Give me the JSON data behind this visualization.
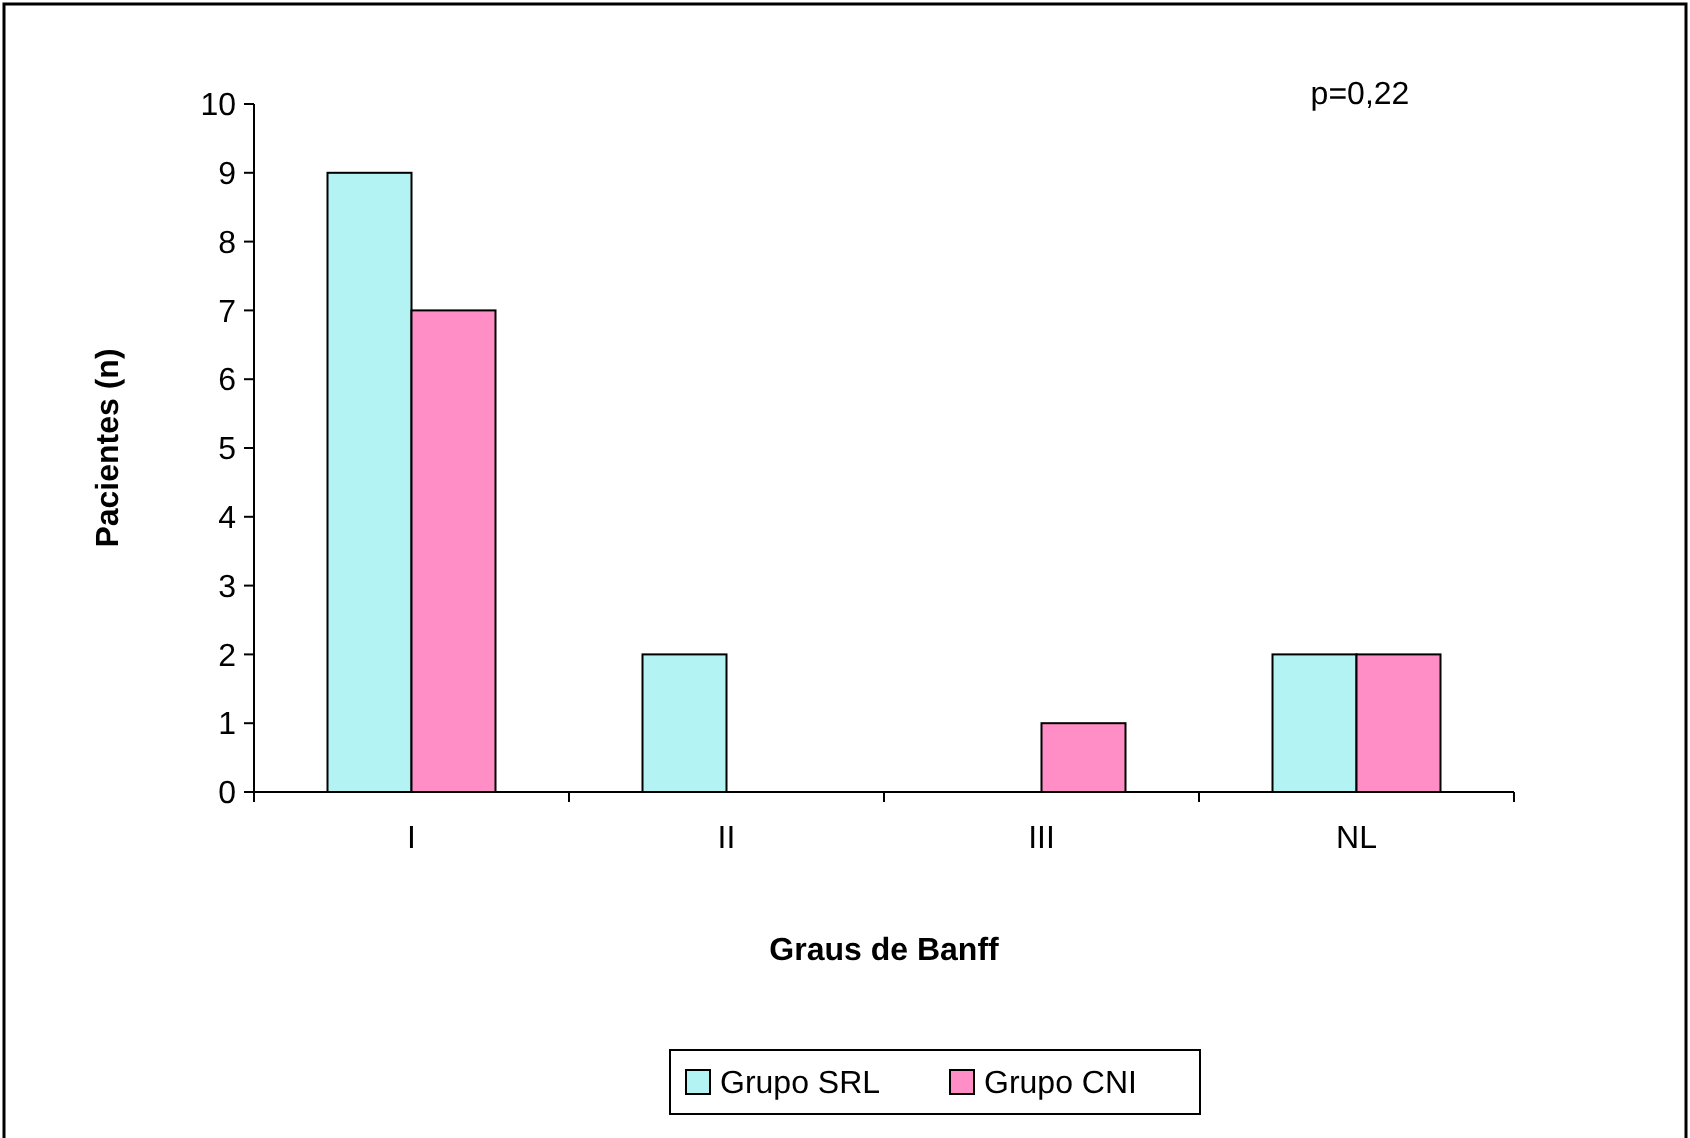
{
  "chart_data": {
    "type": "bar",
    "xlabel": "Graus de Banff",
    "ylabel": "Pacientes (n)",
    "categories": [
      "I",
      "II",
      "III",
      "NL"
    ],
    "series": [
      {
        "name": "Grupo SRL",
        "color": "#b3f3f3",
        "values": [
          9,
          2,
          0,
          2
        ]
      },
      {
        "name": "Grupo CNI",
        "color": "#ff8ec6",
        "values": [
          7,
          0,
          1,
          2
        ]
      }
    ],
    "ylim": [
      0,
      10
    ],
    "yticks": [
      0,
      1,
      2,
      3,
      4,
      5,
      6,
      7,
      8,
      9,
      10
    ],
    "grid": false,
    "legend": "bottom",
    "annotations": [
      "p=0,22"
    ]
  }
}
